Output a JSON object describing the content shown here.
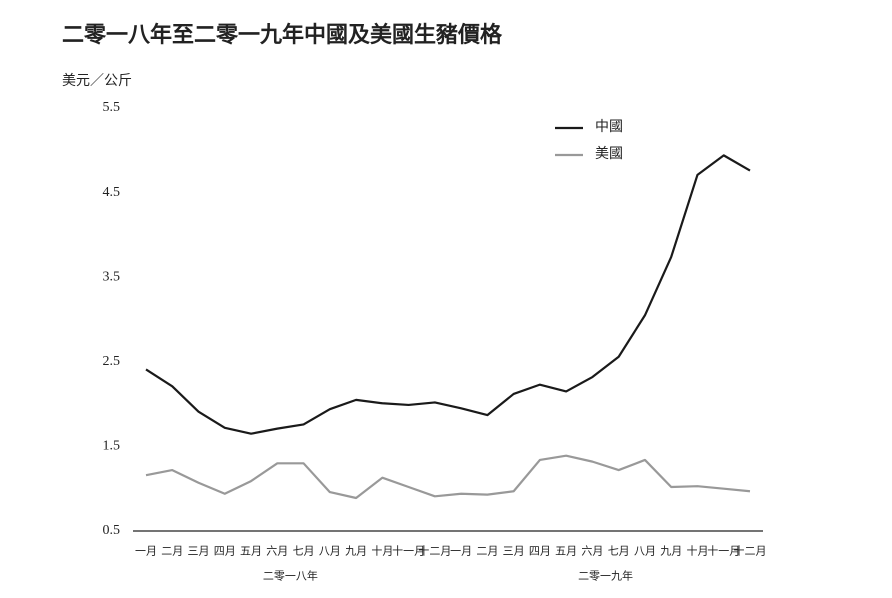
{
  "chart_data": {
    "type": "line",
    "title": "二零一八年至二零一九年中國及美國生豬價格",
    "y_label": "美元／公斤",
    "categories": [
      "一月",
      "二月",
      "三月",
      "四月",
      "五月",
      "六月",
      "七月",
      "八月",
      "九月",
      "十月",
      "十一月",
      "十二月",
      "一月",
      "二月",
      "三月",
      "四月",
      "五月",
      "六月",
      "七月",
      "八月",
      "九月",
      "十月",
      "十一月",
      "十二月"
    ],
    "category_groups": [
      "二零一八年",
      "二零一九年"
    ],
    "series": [
      {
        "name": "中國",
        "color": "#1a1a1a",
        "values": [
          2.41,
          2.21,
          1.91,
          1.72,
          1.65,
          1.71,
          1.76,
          1.94,
          2.05,
          2.01,
          1.99,
          2.02,
          1.95,
          1.87,
          2.12,
          2.23,
          2.15,
          2.32,
          2.56,
          3.05,
          3.74,
          4.71,
          4.94,
          4.76
        ]
      },
      {
        "name": "美國",
        "color": "#999999",
        "values": [
          1.16,
          1.22,
          1.07,
          0.94,
          1.09,
          1.3,
          1.3,
          0.96,
          0.89,
          1.13,
          1.02,
          0.91,
          0.94,
          0.93,
          0.97,
          1.34,
          1.39,
          1.32,
          1.22,
          1.34,
          1.02,
          1.03,
          1.0,
          0.97
        ]
      }
    ],
    "ylim": [
      0.5,
      5.5
    ],
    "yticks": [
      0.5,
      1.5,
      2.5,
      3.5,
      4.5,
      5.5
    ],
    "grid": false,
    "legend": "top-right"
  }
}
